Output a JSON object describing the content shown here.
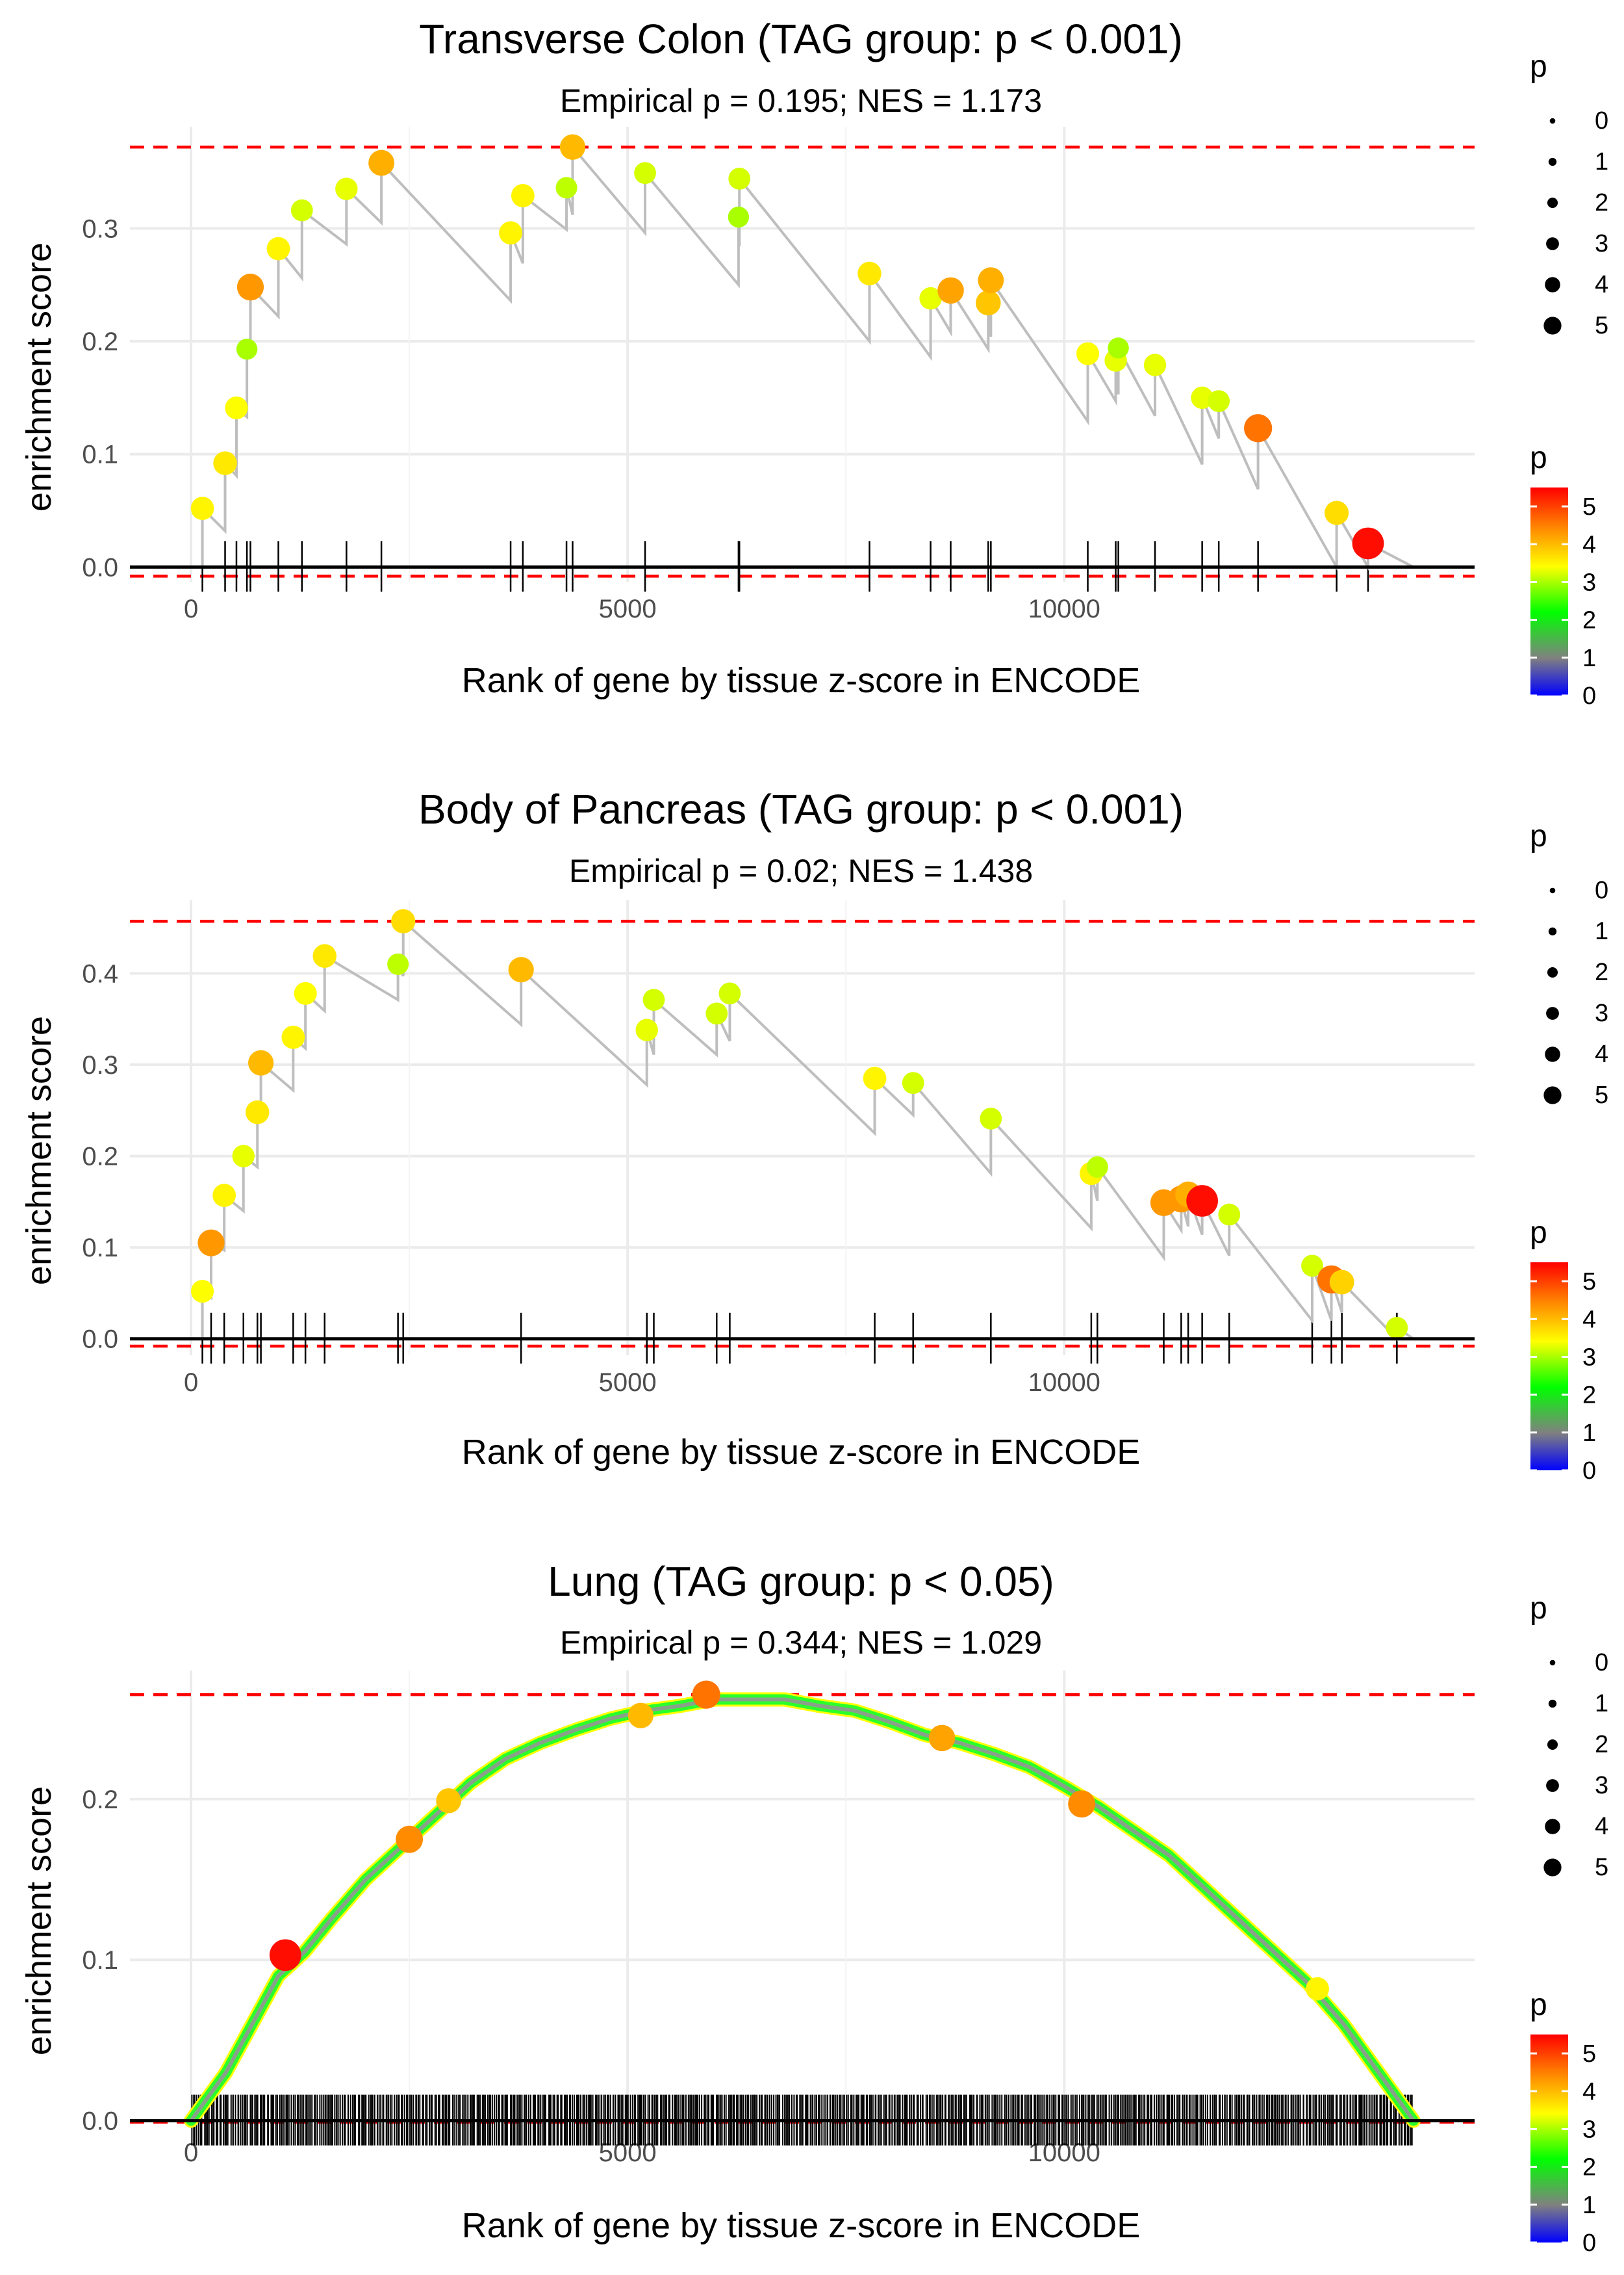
{
  "figure": {
    "xlabel": "Rank of gene by tissue z-score in ENCODE",
    "ylabel": "enrichment score",
    "size_legend_title": "p",
    "color_legend_title": "p"
  },
  "chart_data": [
    {
      "type": "scatter",
      "title": "Transverse Colon (TAG group: p < 0.001)",
      "subtitle": "Empirical p = 0.195; NES = 1.173",
      "xlabel": "Rank of gene by tissue z-score in ENCODE",
      "ylabel": "enrichment score",
      "xlim": [
        -700,
        14700
      ],
      "ylim": [
        -0.013,
        0.39
      ],
      "xticks": [
        0,
        5000,
        10000
      ],
      "xtick_labels": [
        "0",
        "5000",
        "10000"
      ],
      "yticks": [
        0,
        0.1,
        0.2,
        0.3
      ],
      "ytick_labels": [
        "0.0",
        "0.1",
        "0.2",
        "0.3"
      ],
      "es_max": 0.372,
      "es_min": -0.008,
      "end_rank": 14000,
      "points": [
        {
          "x": 130,
          "y": 0.052,
          "p": 3.5
        },
        {
          "x": 390,
          "y": 0.092,
          "p": 3.6
        },
        {
          "x": 520,
          "y": 0.141,
          "p": 3.4
        },
        {
          "x": 640,
          "y": 0.193,
          "p": 3.0
        },
        {
          "x": 680,
          "y": 0.248,
          "p": 4.3
        },
        {
          "x": 1000,
          "y": 0.282,
          "p": 3.5
        },
        {
          "x": 1270,
          "y": 0.316,
          "p": 3.2
        },
        {
          "x": 1780,
          "y": 0.335,
          "p": 3.3
        },
        {
          "x": 2180,
          "y": 0.358,
          "p": 4.1
        },
        {
          "x": 3660,
          "y": 0.296,
          "p": 3.5
        },
        {
          "x": 3800,
          "y": 0.329,
          "p": 3.5
        },
        {
          "x": 4300,
          "y": 0.336,
          "p": 3.1
        },
        {
          "x": 4370,
          "y": 0.372,
          "p": 4.0
        },
        {
          "x": 5200,
          "y": 0.349,
          "p": 3.2
        },
        {
          "x": 6270,
          "y": 0.31,
          "p": 3.0
        },
        {
          "x": 6280,
          "y": 0.344,
          "p": 3.2
        },
        {
          "x": 7770,
          "y": 0.26,
          "p": 3.6
        },
        {
          "x": 8470,
          "y": 0.238,
          "p": 3.3
        },
        {
          "x": 8700,
          "y": 0.245,
          "p": 4.2
        },
        {
          "x": 9130,
          "y": 0.234,
          "p": 3.9
        },
        {
          "x": 9160,
          "y": 0.254,
          "p": 4.1
        },
        {
          "x": 10270,
          "y": 0.189,
          "p": 3.4
        },
        {
          "x": 10590,
          "y": 0.183,
          "p": 3.3
        },
        {
          "x": 10620,
          "y": 0.194,
          "p": 3.0
        },
        {
          "x": 11040,
          "y": 0.179,
          "p": 3.3
        },
        {
          "x": 11580,
          "y": 0.15,
          "p": 3.3
        },
        {
          "x": 11770,
          "y": 0.147,
          "p": 3.2
        },
        {
          "x": 12220,
          "y": 0.123,
          "p": 4.6
        },
        {
          "x": 13120,
          "y": 0.048,
          "p": 3.7
        },
        {
          "x": 13480,
          "y": 0.021,
          "p": 5.4
        }
      ]
    },
    {
      "type": "scatter",
      "title": "Body of Pancreas (TAG group: p < 0.001)",
      "subtitle": "Empirical p = 0.02; NES = 1.438",
      "xlabel": "Rank of gene by tissue z-score in ENCODE",
      "ylabel": "enrichment score",
      "xlim": [
        -700,
        14700
      ],
      "ylim": [
        -0.018,
        0.48
      ],
      "xticks": [
        0,
        5000,
        10000
      ],
      "xtick_labels": [
        "0",
        "5000",
        "10000"
      ],
      "yticks": [
        0,
        0.1,
        0.2,
        0.3,
        0.4
      ],
      "ytick_labels": [
        "0.0",
        "0.1",
        "0.2",
        "0.3",
        "0.4"
      ],
      "es_max": 0.457,
      "es_min": -0.008,
      "end_rank": 14000,
      "points": [
        {
          "x": 130,
          "y": 0.052,
          "p": 3.4
        },
        {
          "x": 230,
          "y": 0.105,
          "p": 4.3
        },
        {
          "x": 380,
          "y": 0.157,
          "p": 3.5
        },
        {
          "x": 600,
          "y": 0.2,
          "p": 3.3
        },
        {
          "x": 760,
          "y": 0.248,
          "p": 3.6
        },
        {
          "x": 800,
          "y": 0.302,
          "p": 4.0
        },
        {
          "x": 1170,
          "y": 0.33,
          "p": 3.5
        },
        {
          "x": 1310,
          "y": 0.378,
          "p": 3.4
        },
        {
          "x": 1530,
          "y": 0.419,
          "p": 3.6
        },
        {
          "x": 2370,
          "y": 0.41,
          "p": 3.1
        },
        {
          "x": 2430,
          "y": 0.457,
          "p": 3.7
        },
        {
          "x": 3780,
          "y": 0.404,
          "p": 4.0
        },
        {
          "x": 5220,
          "y": 0.338,
          "p": 3.3
        },
        {
          "x": 5300,
          "y": 0.371,
          "p": 3.2
        },
        {
          "x": 6020,
          "y": 0.356,
          "p": 3.2
        },
        {
          "x": 6170,
          "y": 0.378,
          "p": 3.2
        },
        {
          "x": 7830,
          "y": 0.285,
          "p": 3.5
        },
        {
          "x": 8270,
          "y": 0.28,
          "p": 3.2
        },
        {
          "x": 9160,
          "y": 0.241,
          "p": 3.2
        },
        {
          "x": 10310,
          "y": 0.181,
          "p": 3.5
        },
        {
          "x": 10380,
          "y": 0.188,
          "p": 3.1
        },
        {
          "x": 11140,
          "y": 0.149,
          "p": 4.3
        },
        {
          "x": 11340,
          "y": 0.153,
          "p": 4.3
        },
        {
          "x": 11420,
          "y": 0.158,
          "p": 4.1
        },
        {
          "x": 11580,
          "y": 0.151,
          "p": 5.4
        },
        {
          "x": 11890,
          "y": 0.136,
          "p": 3.2
        },
        {
          "x": 12840,
          "y": 0.08,
          "p": 3.2
        },
        {
          "x": 13060,
          "y": 0.065,
          "p": 4.6
        },
        {
          "x": 13180,
          "y": 0.062,
          "p": 3.8
        },
        {
          "x": 13810,
          "y": 0.012,
          "p": 3.2
        }
      ]
    },
    {
      "type": "scatter",
      "title": "Lung (TAG group: p < 0.05)",
      "subtitle": "Empirical p = 0.344; NES = 1.029",
      "xlabel": "Rank of gene by tissue z-score in ENCODE",
      "ylabel": "enrichment score",
      "xlim": [
        -700,
        14700
      ],
      "ylim": [
        -0.003,
        0.28
      ],
      "xticks": [
        0,
        5000,
        10000
      ],
      "xtick_labels": [
        "0",
        "5000",
        "10000"
      ],
      "yticks": [
        0,
        0.1,
        0.2
      ],
      "ytick_labels": [
        "0.0",
        "0.1",
        "0.2"
      ],
      "es_max": 0.265,
      "es_min": -0.001,
      "end_rank": 14000,
      "curve": {
        "x": [
          0,
          200,
          400,
          700,
          1000,
          1300,
          1600,
          2000,
          2400,
          2800,
          3200,
          3600,
          4000,
          4400,
          4800,
          5200,
          5600,
          6000,
          6400,
          6800,
          7200,
          7600,
          8000,
          8400,
          8800,
          9200,
          9600,
          10000,
          10400,
          10800,
          11200,
          11600,
          12000,
          12400,
          12800,
          13200,
          13600,
          14000
        ],
        "y": [
          0.0,
          0.015,
          0.03,
          0.06,
          0.09,
          0.105,
          0.125,
          0.15,
          0.17,
          0.19,
          0.21,
          0.225,
          0.235,
          0.243,
          0.25,
          0.255,
          0.258,
          0.262,
          0.262,
          0.262,
          0.258,
          0.255,
          0.248,
          0.24,
          0.235,
          0.228,
          0.22,
          0.208,
          0.195,
          0.18,
          0.165,
          0.145,
          0.125,
          0.105,
          0.085,
          0.06,
          0.03,
          0.0
        ]
      },
      "hits": {
        "ranks_count": 700,
        "range": [
          0,
          14000
        ],
        "note": "dense tick rug of hit ranks"
      },
      "highlighted_points": [
        {
          "x": 1080,
          "y": 0.103,
          "p": 5.4
        },
        {
          "x": 2500,
          "y": 0.175,
          "p": 4.4
        },
        {
          "x": 2950,
          "y": 0.199,
          "p": 3.9
        },
        {
          "x": 5150,
          "y": 0.252,
          "p": 4.0
        },
        {
          "x": 5900,
          "y": 0.265,
          "p": 4.6
        },
        {
          "x": 8600,
          "y": 0.238,
          "p": 4.2
        },
        {
          "x": 10200,
          "y": 0.197,
          "p": 4.4
        },
        {
          "x": 12900,
          "y": 0.082,
          "p": 3.5
        }
      ]
    }
  ],
  "size_legend": {
    "values": [
      "0",
      "1",
      "2",
      "3",
      "4",
      "5"
    ]
  },
  "color_legend": {
    "labels": [
      "0",
      "1",
      "2",
      "3",
      "4",
      "5"
    ],
    "colors": [
      "#0000ff",
      "#808080",
      "#00ff00",
      "#ffff00",
      "#ff8c00",
      "#ff0000"
    ],
    "max": 5.5
  }
}
